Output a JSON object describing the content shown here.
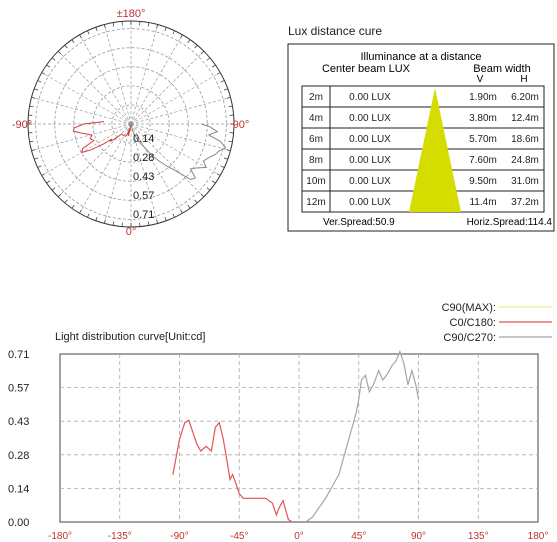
{
  "polar": {
    "top_label": "±180°",
    "left_label": "-90°",
    "right_label": "90°",
    "bottom_label": "0°",
    "ring_labels": [
      "0.14",
      "0.28",
      "0.43",
      "0.57",
      "0.71"
    ]
  },
  "lux": {
    "title": "Lux distance cure",
    "header": "Illuminance at a distance",
    "center_label": "Center beam LUX",
    "beam_label": "Beam width",
    "v_label": "V",
    "h_label": "H",
    "rows": [
      {
        "d": "2m",
        "lux": "0.00 LUX",
        "v": "1.90m",
        "h": "6.20m"
      },
      {
        "d": "4m",
        "lux": "0.00 LUX",
        "v": "3.80m",
        "h": "12.4m"
      },
      {
        "d": "6m",
        "lux": "0.00 LUX",
        "v": "5.70m",
        "h": "18.6m"
      },
      {
        "d": "8m",
        "lux": "0.00 LUX",
        "v": "7.60m",
        "h": "24.8m"
      },
      {
        "d": "10m",
        "lux": "0.00 LUX",
        "v": "9.50m",
        "h": "31.0m"
      },
      {
        "d": "12m",
        "lux": "0.00 LUX",
        "v": "11.4m",
        "h": "37.2m"
      }
    ],
    "ver_spread": "Ver.Spread:50.9",
    "horiz_spread": "Horiz.Spread:114.4",
    "cone_color": "#d4dc00"
  },
  "chart_data": {
    "type": "line",
    "title": "Light distribution curve[Unit:cd]",
    "x_ticks": [
      "-180°",
      "-135°",
      "-90°",
      "-45°",
      "0°",
      "45°",
      "90°",
      "135°",
      "180°"
    ],
    "y_ticks": [
      "0.00",
      "0.14",
      "0.28",
      "0.43",
      "0.57",
      "0.71"
    ],
    "xlim": [
      -180,
      180
    ],
    "ylim": [
      0,
      0.71
    ],
    "grid": true,
    "legend_position": "top-right",
    "series": [
      {
        "name": "C90(MAX):",
        "color": "#f2ee8c",
        "values": []
      },
      {
        "name": "C0/C180:",
        "color": "#e05555",
        "points": [
          [
            -95,
            0.2
          ],
          [
            -90,
            0.35
          ],
          [
            -86,
            0.42
          ],
          [
            -83,
            0.43
          ],
          [
            -80,
            0.38
          ],
          [
            -77,
            0.33
          ],
          [
            -74,
            0.3
          ],
          [
            -70,
            0.32
          ],
          [
            -66,
            0.3
          ],
          [
            -63,
            0.4
          ],
          [
            -60,
            0.42
          ],
          [
            -57,
            0.35
          ],
          [
            -54,
            0.25
          ],
          [
            -52,
            0.18
          ],
          [
            -50,
            0.2
          ],
          [
            -48,
            0.17
          ],
          [
            -45,
            0.12
          ],
          [
            -42,
            0.1
          ],
          [
            -35,
            0.1
          ],
          [
            -30,
            0.1
          ],
          [
            -25,
            0.1
          ],
          [
            -20,
            0.08
          ],
          [
            -17,
            0.03
          ],
          [
            -15,
            0.06
          ],
          [
            -12,
            0.09
          ],
          [
            -10,
            0.05
          ],
          [
            -8,
            0.01
          ],
          [
            -5,
            0.0
          ]
        ]
      },
      {
        "name": "C90/C270:",
        "color": "#a8a2aa",
        "points": [
          [
            5,
            0.0
          ],
          [
            10,
            0.02
          ],
          [
            15,
            0.06
          ],
          [
            20,
            0.1
          ],
          [
            25,
            0.15
          ],
          [
            30,
            0.2
          ],
          [
            33,
            0.26
          ],
          [
            36,
            0.32
          ],
          [
            40,
            0.4
          ],
          [
            43,
            0.46
          ],
          [
            45,
            0.52
          ],
          [
            47,
            0.6
          ],
          [
            50,
            0.62
          ],
          [
            53,
            0.55
          ],
          [
            56,
            0.58
          ],
          [
            60,
            0.64
          ],
          [
            63,
            0.6
          ],
          [
            66,
            0.62
          ],
          [
            70,
            0.66
          ],
          [
            73,
            0.68
          ],
          [
            76,
            0.72
          ],
          [
            79,
            0.67
          ],
          [
            82,
            0.58
          ],
          [
            85,
            0.64
          ],
          [
            88,
            0.58
          ],
          [
            90,
            0.52
          ]
        ]
      }
    ]
  }
}
